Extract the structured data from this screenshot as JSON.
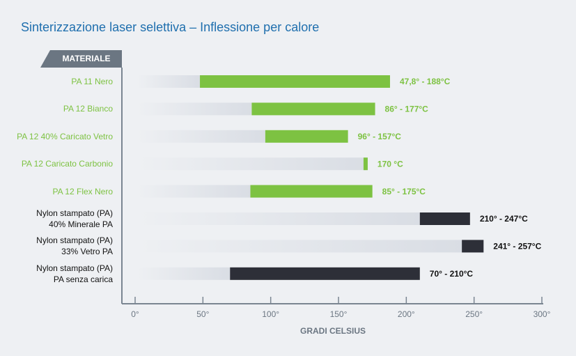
{
  "chart_data": {
    "type": "range-bar",
    "title": "Sinterizzazione laser selettiva – Inflessione per calore",
    "y_header": "MATERIALE",
    "xlabel": "GRADI CELSIUS",
    "categories": [
      "PA 11 Nero",
      "PA 12 Bianco",
      "PA 12 40% Caricato Vetro",
      "PA 12 Caricato Carbonio",
      "PA 12 Flex Nero",
      "Nylon stampato (PA)\n40% Minerale PA",
      "Nylon stampato (PA)\n33% Vetro PA",
      "Nylon stampato (PA)\nPA senza carica"
    ],
    "values": [
      [
        47.8,
        188
      ],
      [
        86,
        177
      ],
      [
        96,
        157
      ],
      [
        170,
        170
      ],
      [
        85,
        175
      ],
      [
        210,
        247
      ],
      [
        241,
        257
      ],
      [
        70,
        210
      ]
    ],
    "value_labels": [
      "47,8° - 188°C",
      "86° - 177°C",
      "96° - 157°C",
      "170 °C",
      "85° - 175°C",
      "210° - 247°C",
      "241° - 257°C",
      "70° - 210°C"
    ],
    "colors": [
      "#7dc242",
      "#7dc242",
      "#7dc242",
      "#7dc242",
      "#7dc242",
      "#2d2f38",
      "#2d2f38",
      "#2d2f38"
    ],
    "xlim": [
      0,
      300
    ],
    "xticks": [
      {
        "value": 0,
        "label": "0°"
      },
      {
        "value": 50,
        "label": "50°"
      },
      {
        "value": 100,
        "label": "100°"
      },
      {
        "value": 150,
        "label": "150°"
      },
      {
        "value": 200,
        "label": "200°"
      },
      {
        "value": 250,
        "label": "250°"
      },
      {
        "value": 300,
        "label": "300°"
      }
    ]
  }
}
